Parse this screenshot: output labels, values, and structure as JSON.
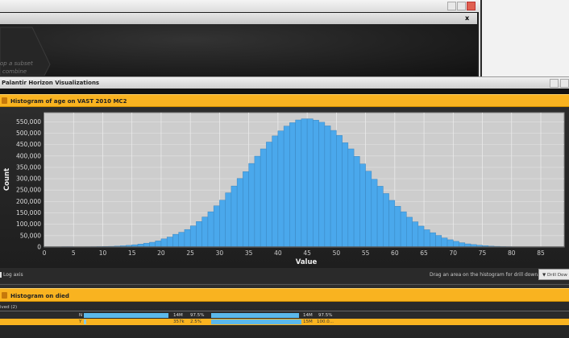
{
  "top_window": {
    "hint_line1": "op a subset",
    "hint_line2": "combine",
    "close_label": "x"
  },
  "window": {
    "title": "Palantir Horizon Visualizations"
  },
  "histogram1": {
    "header": "Histogram of age on VAST 2010 MC2",
    "log_axis_label": "Log axis",
    "drill_hint": "Drag an area on the histogram for drill down.",
    "drill_button": "Drill Dow"
  },
  "chart_data": {
    "type": "bar",
    "title": "",
    "xlabel": "Value",
    "ylabel": "Count",
    "xlim": [
      0,
      89
    ],
    "ylim": [
      0,
      590000
    ],
    "grid": true,
    "bar_color": "#4aa8ec",
    "xticks": [
      0,
      5,
      10,
      15,
      20,
      25,
      30,
      35,
      40,
      45,
      50,
      55,
      60,
      65,
      70,
      75,
      80,
      85
    ],
    "yticks": [
      0,
      50000,
      100000,
      150000,
      200000,
      250000,
      300000,
      350000,
      400000,
      450000,
      500000,
      550000
    ],
    "ytick_labels": [
      "0",
      "50,000",
      "100,000",
      "150,000",
      "200,000",
      "250,000",
      "300,000",
      "350,000",
      "400,000",
      "450,000",
      "500,000",
      "550,000"
    ],
    "x": [
      0,
      1,
      2,
      3,
      4,
      5,
      6,
      7,
      8,
      9,
      10,
      11,
      12,
      13,
      14,
      15,
      16,
      17,
      18,
      19,
      20,
      21,
      22,
      23,
      24,
      25,
      26,
      27,
      28,
      29,
      30,
      31,
      32,
      33,
      34,
      35,
      36,
      37,
      38,
      39,
      40,
      41,
      42,
      43,
      44,
      45,
      46,
      47,
      48,
      49,
      50,
      51,
      52,
      53,
      54,
      55,
      56,
      57,
      58,
      59,
      60,
      61,
      62,
      63,
      64,
      65,
      66,
      67,
      68,
      69,
      70,
      71,
      72,
      73,
      74,
      75,
      76,
      77,
      78,
      79,
      80,
      81,
      82,
      83,
      84,
      85,
      86,
      87
    ],
    "values": [
      1000,
      1000,
      1000,
      1500,
      1500,
      1000,
      1000,
      1200,
      1500,
      2000,
      2500,
      3000,
      4000,
      5500,
      7500,
      10000,
      13000,
      17000,
      21000,
      27000,
      36000,
      44000,
      56000,
      65000,
      77000,
      93000,
      112000,
      132000,
      155000,
      181000,
      206000,
      238000,
      268000,
      301000,
      331000,
      367000,
      399000,
      431000,
      461000,
      488000,
      510000,
      531000,
      546000,
      558000,
      563000,
      563000,
      557000,
      548000,
      532000,
      512000,
      490000,
      458000,
      431000,
      398000,
      365000,
      333000,
      298000,
      267000,
      235000,
      205000,
      179000,
      155000,
      131000,
      111000,
      92000,
      76000,
      63000,
      51000,
      40000,
      32000,
      25000,
      19000,
      14000,
      11000,
      8000,
      6000,
      4000,
      3000,
      2000,
      1500,
      1000,
      800,
      600,
      400,
      300,
      200,
      100,
      100
    ]
  },
  "histogram2": {
    "header": "Histogram on died",
    "group_label": "ived (2)",
    "rows": [
      {
        "label": "N",
        "count": "14M",
        "pct": "97.5%",
        "total": "14M",
        "total_pct": "97.5%",
        "fraction": 0.975,
        "total_fraction": 0.975
      },
      {
        "label": "Y",
        "count": "357k",
        "pct": "2.5%",
        "total": "15M",
        "total_pct": "100.0...",
        "fraction": 0.025,
        "total_fraction": 1.0
      }
    ]
  }
}
